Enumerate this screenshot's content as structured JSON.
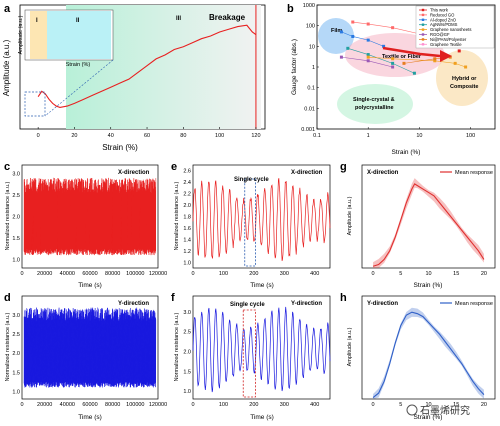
{
  "panels": {
    "a": {
      "label": "a",
      "xlabel": "Strain (%)",
      "ylabel": "Amplitude (a.u.)",
      "xticks": [
        "0",
        "20",
        "40",
        "60",
        "80",
        "100",
        "120"
      ],
      "stages": [
        "I",
        "II",
        "III"
      ],
      "breakage": "Breakage",
      "inset_xlabel": "Strain (%)",
      "inset_ylabel": "Amplitude (a.u.)"
    },
    "b": {
      "label": "b",
      "xlabel": "Strain (%)",
      "ylabel": "Gauge factor (abs.)",
      "xticks": [
        "0.1",
        "1",
        "10",
        "100"
      ],
      "yticks": [
        "1000",
        "100",
        "10",
        "1",
        "0.1",
        "0.01",
        "0.001"
      ],
      "regions": {
        "film": "Film",
        "textile": "Textile or Fiber",
        "hybrid1": "Hybrid or",
        "hybrid2": "Composite",
        "single1": "Single-crystal &",
        "single2": "polycrystalline"
      },
      "legend": [
        {
          "name": "This work",
          "color": "#e02020"
        },
        {
          "name": "Reduced GO",
          "color": "#ff6a6a"
        },
        {
          "name": "Al-doped ZnO",
          "color": "#2a7ae2"
        },
        {
          "name": "AgNWs/PDMS",
          "color": "#20a0a0"
        },
        {
          "name": "Graphene nanosheets",
          "color": "#f0a020"
        },
        {
          "name": "RGO@GF",
          "color": "#9b59b6"
        },
        {
          "name": "Ni@PANI/Polyester",
          "color": "#e67e22"
        },
        {
          "name": "Graphene Textile",
          "color": "#ff8fd0"
        }
      ]
    },
    "c": {
      "label": "c",
      "direction": "X-direction",
      "xlabel": "Time (s)",
      "ylabel": "Normalized resistance (a.u.)",
      "xticks": [
        "0",
        "20000",
        "40000",
        "60000",
        "80000",
        "100000",
        "120000"
      ],
      "yticks": [
        "1.0",
        "1.5",
        "2.0",
        "2.5",
        "3.0"
      ]
    },
    "d": {
      "label": "d",
      "direction": "Y-direction",
      "xlabel": "Time (s)",
      "ylabel": "Normalized resistance (a.u.)",
      "xticks": [
        "0",
        "20000",
        "40000",
        "60000",
        "80000",
        "100000",
        "120000"
      ],
      "yticks": [
        "1.0",
        "1.5",
        "2.0",
        "2.5",
        "3.0"
      ]
    },
    "e": {
      "label": "e",
      "direction": "X-direction",
      "cycle": "Single cycle",
      "xlabel": "Time (s)",
      "ylabel": "Normalized resistance (a.u.)",
      "xticks": [
        "0",
        "100",
        "200",
        "300",
        "400"
      ],
      "yticks": [
        "1.0",
        "1.2",
        "1.4",
        "1.6",
        "1.8",
        "2.0",
        "2.2",
        "2.4",
        "2.6"
      ]
    },
    "f": {
      "label": "f",
      "direction": "Y-direction",
      "cycle": "Single cycle",
      "xlabel": "Time (s)",
      "ylabel": "Normalized resistance (a.u.)",
      "xticks": [
        "0",
        "100",
        "200",
        "300",
        "400"
      ],
      "yticks": [
        "1.0",
        "1.5",
        "2.0",
        "2.5",
        "3.0"
      ]
    },
    "g": {
      "label": "g",
      "direction": "X-direction",
      "legend": "Mean response",
      "xlabel": "Strain (%)",
      "ylabel": "Amplitude (a.u.)",
      "xticks": [
        "0",
        "5",
        "10",
        "15",
        "20"
      ]
    },
    "h": {
      "label": "h",
      "direction": "Y-direction",
      "legend": "Mean response",
      "xlabel": "Strain (%)",
      "ylabel": "Amplitude (a.u.)",
      "xticks": [
        "0",
        "5",
        "10",
        "15",
        "20"
      ]
    }
  },
  "watermark": "石墨烯研究",
  "colors": {
    "red": "#e82020",
    "blue": "#1a1adf",
    "meanRed": "#e03030",
    "meanBlue": "#3060c8"
  },
  "chart_data": [
    {
      "type": "line",
      "panel": "a",
      "xlim": [
        -10,
        125
      ],
      "x": [
        0,
        2,
        4,
        6,
        8,
        10,
        12,
        16,
        20,
        25,
        30,
        35,
        40,
        45,
        50,
        55,
        60,
        65,
        70,
        75,
        80,
        85,
        90,
        95,
        100,
        105,
        110,
        115,
        118,
        120
      ],
      "y": [
        1.2,
        1.4,
        1.3,
        1.1,
        0.95,
        0.85,
        0.8,
        0.85,
        0.95,
        1.1,
        1.25,
        1.4,
        1.55,
        1.7,
        1.85,
        2.1,
        2.35,
        2.6,
        2.75,
        2.95,
        3.05,
        3.2,
        3.35,
        3.45,
        3.6,
        3.7,
        3.8,
        3.85,
        3.6,
        3.5
      ]
    },
    {
      "type": "scatter",
      "panel": "b",
      "xlim": [
        0.1,
        300
      ],
      "ylim": [
        0.001,
        1000
      ],
      "log": true,
      "series": [
        {
          "name": "This work",
          "x": [
            60
          ],
          "y": [
            6
          ]
        },
        {
          "name": "Reduced GO",
          "x": [
            0.5,
            1,
            3,
            10,
            20
          ],
          "y": [
            150,
            120,
            80,
            40,
            20
          ]
        },
        {
          "name": "Al-doped ZnO",
          "x": [
            0.3,
            0.5,
            1,
            2
          ],
          "y": [
            50,
            30,
            20,
            10
          ]
        },
        {
          "name": "AgNWs/PDMS",
          "x": [
            0.4,
            1,
            3,
            8
          ],
          "y": [
            8,
            4,
            1.5,
            0.5
          ]
        },
        {
          "name": "Graphene nanosheets",
          "x": [
            1,
            3,
            20,
            50,
            80
          ],
          "y": [
            3,
            2.5,
            2,
            1.5,
            1
          ]
        },
        {
          "name": "RGO@GF",
          "x": [
            0.3,
            1,
            3
          ],
          "y": [
            3,
            2,
            1
          ]
        },
        {
          "name": "Ni@PANI/Polyester",
          "x": [
            5,
            20,
            40
          ],
          "y": [
            1.5,
            2.5,
            3
          ]
        },
        {
          "name": "Graphene Textile",
          "x": [
            10,
            30,
            60,
            100
          ],
          "y": [
            400,
            300,
            200,
            100
          ]
        }
      ]
    },
    {
      "type": "line",
      "panel": "c",
      "xlim": [
        0,
        120000
      ],
      "ylim": [
        0.8,
        3.2
      ],
      "band": [
        1.1,
        2.9
      ]
    },
    {
      "type": "line",
      "panel": "d",
      "xlim": [
        0,
        120000
      ],
      "ylim": [
        0.8,
        3.5
      ],
      "band": [
        1.1,
        3.2
      ]
    },
    {
      "type": "line",
      "panel": "e",
      "xlim": [
        0,
        450
      ],
      "ylim": [
        0.9,
        2.7
      ],
      "cycle_window": [
        170,
        205
      ]
    },
    {
      "type": "line",
      "panel": "f",
      "xlim": [
        0,
        450
      ],
      "ylim": [
        0.8,
        3.4
      ],
      "cycle_window": [
        165,
        205
      ]
    },
    {
      "type": "area",
      "panel": "g",
      "name": "Mean response",
      "xlim": [
        -2,
        22
      ],
      "ylim": [
        0,
        3
      ],
      "x": [
        0,
        1,
        2,
        3,
        4,
        5,
        6,
        7,
        7.5,
        8,
        9,
        10,
        11,
        12,
        13,
        14,
        15,
        16,
        17,
        18,
        19,
        20
      ],
      "y": [
        0.05,
        0.1,
        0.25,
        0.5,
        0.9,
        1.4,
        1.9,
        2.3,
        2.45,
        2.4,
        2.3,
        2.2,
        2.1,
        1.9,
        1.7,
        1.5,
        1.3,
        1.1,
        0.9,
        0.7,
        0.5,
        0.25
      ]
    },
    {
      "type": "area",
      "panel": "h",
      "name": "Mean response",
      "xlim": [
        -2,
        22
      ],
      "ylim": [
        0,
        3.5
      ],
      "x": [
        0,
        1,
        2,
        3,
        4,
        5,
        6,
        7,
        8,
        9,
        10,
        11,
        12,
        13,
        14,
        15,
        16,
        17,
        18,
        19,
        20
      ],
      "y": [
        0.05,
        0.2,
        0.6,
        1.2,
        1.9,
        2.5,
        2.85,
        2.95,
        2.9,
        2.8,
        2.6,
        2.4,
        2.2,
        1.95,
        1.7,
        1.45,
        1.2,
        0.9,
        0.6,
        0.35,
        0.15
      ]
    }
  ]
}
